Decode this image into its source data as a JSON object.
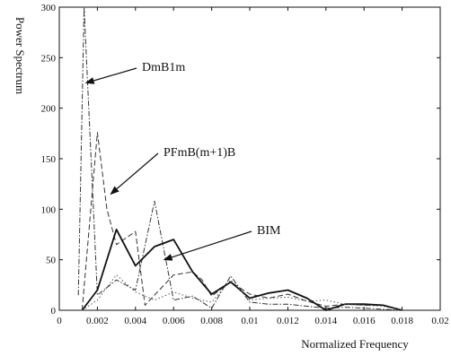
{
  "chart_data": {
    "type": "line",
    "title": "",
    "xlabel": "Normalized Frequency",
    "ylabel": "Power Spectrum",
    "xlim": [
      0,
      0.02
    ],
    "ylim": [
      0,
      300
    ],
    "grid": false,
    "legend": "none",
    "x_ticks": [
      0,
      0.002,
      0.004,
      0.006,
      0.008,
      0.01,
      0.012,
      0.014,
      0.016,
      0.018,
      0.02
    ],
    "x_tick_labels": [
      "0",
      "0.002",
      "0.004",
      "0.006",
      "0.008",
      "0.01",
      "0.012",
      "0.014",
      "0.016",
      "0.018",
      "0.02"
    ],
    "y_ticks": [
      0,
      50,
      100,
      150,
      200,
      250,
      300
    ],
    "y_tick_labels": [
      "0",
      "50",
      "100",
      "150",
      "200",
      "250",
      "300"
    ],
    "series": [
      {
        "name": "DmB1m",
        "style": "dashdot",
        "color": "#333333",
        "x": [
          0.001,
          0.0013,
          0.002,
          0.003,
          0.0035,
          0.004,
          0.005,
          0.006,
          0.0065,
          0.007,
          0.0075,
          0.008,
          0.009,
          0.01,
          0.011,
          0.012,
          0.013,
          0.014,
          0.015,
          0.016,
          0.017,
          0.018
        ],
        "values": [
          15,
          300,
          15,
          30,
          25,
          20,
          108,
          10,
          12,
          14,
          8,
          2,
          34,
          8,
          6,
          6,
          4,
          2,
          3,
          2,
          1,
          0
        ]
      },
      {
        "name": "PFmB(m+1)B",
        "style": "dashed",
        "color": "#333333",
        "x": [
          0.0012,
          0.002,
          0.0025,
          0.003,
          0.004,
          0.0045,
          0.005,
          0.006,
          0.007,
          0.0075,
          0.008,
          0.009,
          0.01,
          0.011,
          0.012,
          0.013,
          0.014,
          0.015,
          0.016,
          0.017,
          0.018
        ],
        "values": [
          0,
          176,
          100,
          65,
          78,
          5,
          15,
          35,
          38,
          30,
          14,
          28,
          16,
          12,
          16,
          9,
          4,
          6,
          5,
          5,
          0
        ]
      },
      {
        "name": "BIM",
        "style": "solid",
        "color": "#111111",
        "x": [
          0.0012,
          0.002,
          0.003,
          0.004,
          0.005,
          0.006,
          0.007,
          0.008,
          0.009,
          0.01,
          0.011,
          0.012,
          0.013,
          0.014,
          0.015,
          0.016,
          0.017,
          0.018
        ],
        "values": [
          0,
          20,
          80,
          44,
          63,
          70,
          38,
          16,
          28,
          12,
          17,
          20,
          12,
          0,
          6,
          6,
          5,
          0
        ]
      },
      {
        "name": "",
        "style": "dotted",
        "color": "#555555",
        "x": [
          0.0012,
          0.002,
          0.003,
          0.004,
          0.005,
          0.006,
          0.007,
          0.008,
          0.009,
          0.01,
          0.011,
          0.012,
          0.013,
          0.014,
          0.015,
          0.016,
          0.017,
          0.018
        ],
        "values": [
          0,
          10,
          35,
          18,
          10,
          18,
          12,
          8,
          30,
          10,
          12,
          13,
          9,
          10,
          6,
          5,
          4,
          0
        ]
      }
    ],
    "annotations": [
      {
        "text": "DmB1m",
        "points_to_series": "DmB1m",
        "target": [
          0.0014,
          225
        ]
      },
      {
        "text": "PFmB(m+1)B",
        "points_to_series": "PFmB(m+1)B",
        "target": [
          0.0027,
          115
        ]
      },
      {
        "text": "BIM",
        "points_to_series": "BIM",
        "target": [
          0.0055,
          50
        ]
      }
    ]
  }
}
